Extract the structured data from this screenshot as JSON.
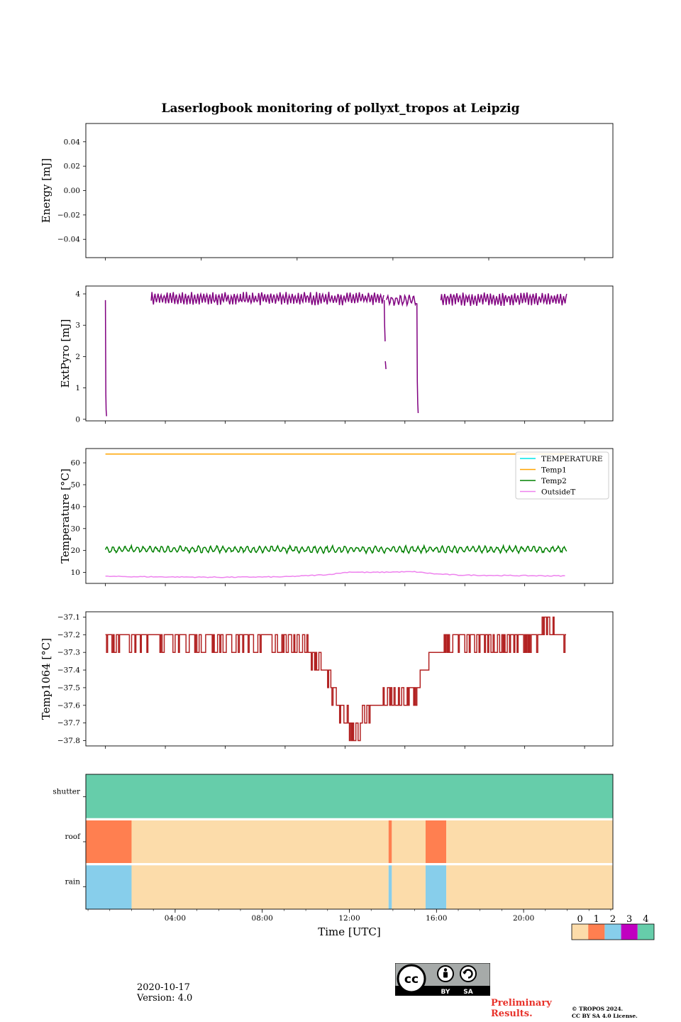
{
  "title": "Laserlogbook monitoring of pollyxt_tropos at Leipzig",
  "chart_data": [
    {
      "type": "line",
      "panel": "energy",
      "ylabel": "Energy [mJ]",
      "ylim": [
        -0.055,
        0.055
      ],
      "yticks": [
        -0.04,
        -0.02,
        0.0,
        0.02,
        0.04
      ],
      "ytick_labels": [
        "−0.04",
        "−0.02",
        "0.00",
        "0.02",
        "0.04"
      ],
      "series": []
    },
    {
      "type": "line",
      "panel": "extpyro",
      "ylabel": "ExtPyro [mJ]",
      "ylim": [
        -0.05,
        4.25
      ],
      "yticks": [
        0,
        1,
        2,
        3,
        4
      ],
      "ytick_labels": [
        "0",
        "1",
        "2",
        "3",
        "4"
      ],
      "series": [
        {
          "name": "ExtPyro",
          "color": "#800080",
          "segments": [
            {
              "x": [
                0.8,
                0.82,
                0.83,
                0.85
              ],
              "y": [
                3.8,
                0.8,
                0.3,
                0.1
              ]
            },
            {
              "x": [
                2.9,
                13.6
              ],
              "y_mean": 3.85,
              "y_amp": 0.15,
              "osc_period": 0.14
            },
            {
              "x": [
                13.6,
                13.62,
                13.64,
                13.66
              ],
              "y": [
                3.8,
                3.0,
                2.5,
                2.5
              ]
            },
            {
              "x": [
                13.65,
                13.68
              ],
              "y": [
                1.85,
                1.6
              ]
            },
            {
              "x": [
                13.7,
                15.1
              ],
              "y_mean": 3.8,
              "y_amp": 0.12,
              "osc_period": 0.2
            },
            {
              "x": [
                15.1,
                15.12,
                15.14,
                15.16
              ],
              "y": [
                3.7,
                1.2,
                0.5,
                0.2
              ]
            },
            {
              "x": [
                16.2,
                22.0
              ],
              "y_mean": 3.83,
              "y_amp": 0.15,
              "osc_period": 0.14
            }
          ]
        }
      ]
    },
    {
      "type": "line",
      "panel": "temperature",
      "ylabel": "Temperature [°C]",
      "ylim": [
        5,
        66.5
      ],
      "yticks": [
        10,
        20,
        30,
        40,
        50,
        60
      ],
      "ytick_labels": [
        "10",
        "20",
        "30",
        "40",
        "50",
        "60"
      ],
      "legend": "top-right",
      "series": [
        {
          "name": "TEMPERATURE",
          "color": "#00e5e5",
          "values_note": "no data"
        },
        {
          "name": "Temp1",
          "color": "#ffa500",
          "x": [
            0.8,
            22.0
          ],
          "y": [
            64,
            64
          ]
        },
        {
          "name": "Temp2",
          "color": "#008000",
          "x_range": [
            0.8,
            22.0
          ],
          "y_mean": 20.5,
          "y_amp": 1.2,
          "osc_period": 0.28
        },
        {
          "name": "OutsideT",
          "color": "#ee82ee",
          "x": [
            0.8,
            3,
            6,
            9,
            11,
            12,
            13,
            14,
            15,
            16,
            17,
            19,
            22
          ],
          "y": [
            8.2,
            8.0,
            7.8,
            8.0,
            9.0,
            10.2,
            10.0,
            10.2,
            10.3,
            9.3,
            8.8,
            8.6,
            8.4
          ]
        }
      ]
    },
    {
      "type": "line",
      "panel": "temp1064",
      "ylabel": "Temp1064 [°C]",
      "ylim": [
        -37.83,
        -37.07
      ],
      "yticks": [
        -37.1,
        -37.2,
        -37.3,
        -37.4,
        -37.5,
        -37.6,
        -37.7,
        -37.8
      ],
      "ytick_labels": [
        "−37.1",
        "−37.2",
        "−37.3",
        "−37.4",
        "−37.5",
        "−37.6",
        "−37.7",
        "−37.8"
      ],
      "series": [
        {
          "name": "Temp1064",
          "color": "#b22222",
          "x": [
            0.8,
            3,
            6,
            8,
            10,
            10.5,
            11,
            11.3,
            11.6,
            12.0,
            12.3,
            12.6,
            13.0,
            13.5,
            14.0,
            14.5,
            15.0,
            15.3,
            15.6,
            16.0,
            16.5,
            18,
            20,
            21,
            22
          ],
          "y": [
            -37.22,
            -37.22,
            -37.22,
            -37.22,
            -37.25,
            -37.35,
            -37.45,
            -37.55,
            -37.65,
            -37.72,
            -37.75,
            -37.68,
            -37.6,
            -37.6,
            -37.58,
            -37.58,
            -37.55,
            -37.45,
            -37.38,
            -37.3,
            -37.25,
            -37.25,
            -37.25,
            -37.18,
            -37.22
          ],
          "step_quantum": 0.1
        }
      ]
    },
    {
      "type": "heatmap",
      "panel": "status",
      "rows": [
        "shutter",
        "roof",
        "rain"
      ],
      "xlim": [
        -0.1,
        24.1
      ],
      "xticks": [
        4,
        8,
        12,
        16,
        20
      ],
      "xtick_labels": [
        "04:00",
        "08:00",
        "12:00",
        "16:00",
        "20:00"
      ],
      "xlabel": "Time [UTC]",
      "status_colors": {
        "0": "#fcdcaa",
        "1": "#ff7f50",
        "2": "#87ceeb",
        "3": "#c000c0",
        "4": "#66cdaa"
      },
      "segments": {
        "shutter": [
          {
            "from": -0.1,
            "to": 24.1,
            "value": 4
          }
        ],
        "roof": [
          {
            "from": -0.1,
            "to": 2.0,
            "value": 1
          },
          {
            "from": 2.0,
            "to": 13.8,
            "value": 0
          },
          {
            "from": 13.8,
            "to": 13.95,
            "value": 1
          },
          {
            "from": 13.95,
            "to": 15.5,
            "value": 0
          },
          {
            "from": 15.5,
            "to": 16.45,
            "value": 1
          },
          {
            "from": 16.45,
            "to": 24.1,
            "value": 0
          }
        ],
        "rain": [
          {
            "from": -0.1,
            "to": 2.0,
            "value": 2
          },
          {
            "from": 2.0,
            "to": 13.8,
            "value": 0
          },
          {
            "from": 13.8,
            "to": 13.95,
            "value": 2
          },
          {
            "from": 13.95,
            "to": 15.5,
            "value": 0
          },
          {
            "from": 15.5,
            "to": 16.45,
            "value": 2
          },
          {
            "from": 16.45,
            "to": 24.1,
            "value": 0
          }
        ]
      },
      "colorbar_labels": [
        "0",
        "1",
        "2",
        "3",
        "4"
      ]
    }
  ],
  "footer": {
    "date": "2020-10-17",
    "version": "Version: 4.0",
    "preliminary_line1": "Preliminary",
    "preliminary_line2": "Results.",
    "copyright_line1": "© TROPOS 2024.",
    "copyright_line2": "CC BY SA 4.0 License.",
    "license_badge": "CC BY SA"
  }
}
